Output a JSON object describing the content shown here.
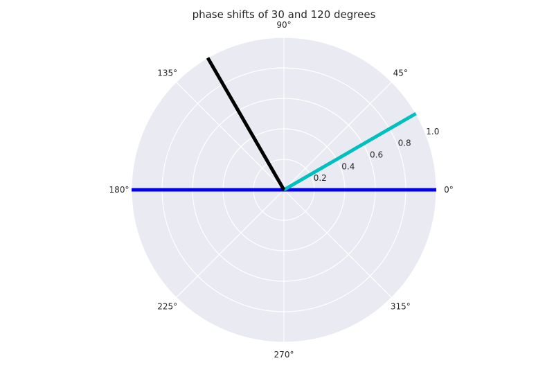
{
  "chart_data": {
    "type": "line",
    "projection": "polar",
    "title": "phase shifts of 30 and 120 degrees",
    "angle_ticks": [
      "0°",
      "45°",
      "90°",
      "135°",
      "180°",
      "225°",
      "270°",
      "315°"
    ],
    "angle_tick_values_deg": [
      0,
      45,
      90,
      135,
      180,
      225,
      270,
      315
    ],
    "radial_ticks": [
      "0.2",
      "0.4",
      "0.6",
      "0.8",
      "1.0"
    ],
    "radial_tick_values": [
      0.2,
      0.4,
      0.6,
      0.8,
      1.0
    ],
    "rlim": [
      0,
      1.0
    ],
    "grid": true,
    "series": [
      {
        "theta_deg": [
          0,
          180
        ],
        "r": [
          1.0,
          1.0
        ],
        "color": "#0000ee"
      },
      {
        "theta_deg": [
          30,
          30
        ],
        "r": [
          0,
          1.0
        ],
        "color": "#00bfbf"
      },
      {
        "theta_deg": [
          120,
          120
        ],
        "r": [
          0,
          1.0
        ],
        "color": "#000000"
      }
    ],
    "background": "#eaeaf2",
    "grid_color": "#ffffff"
  }
}
